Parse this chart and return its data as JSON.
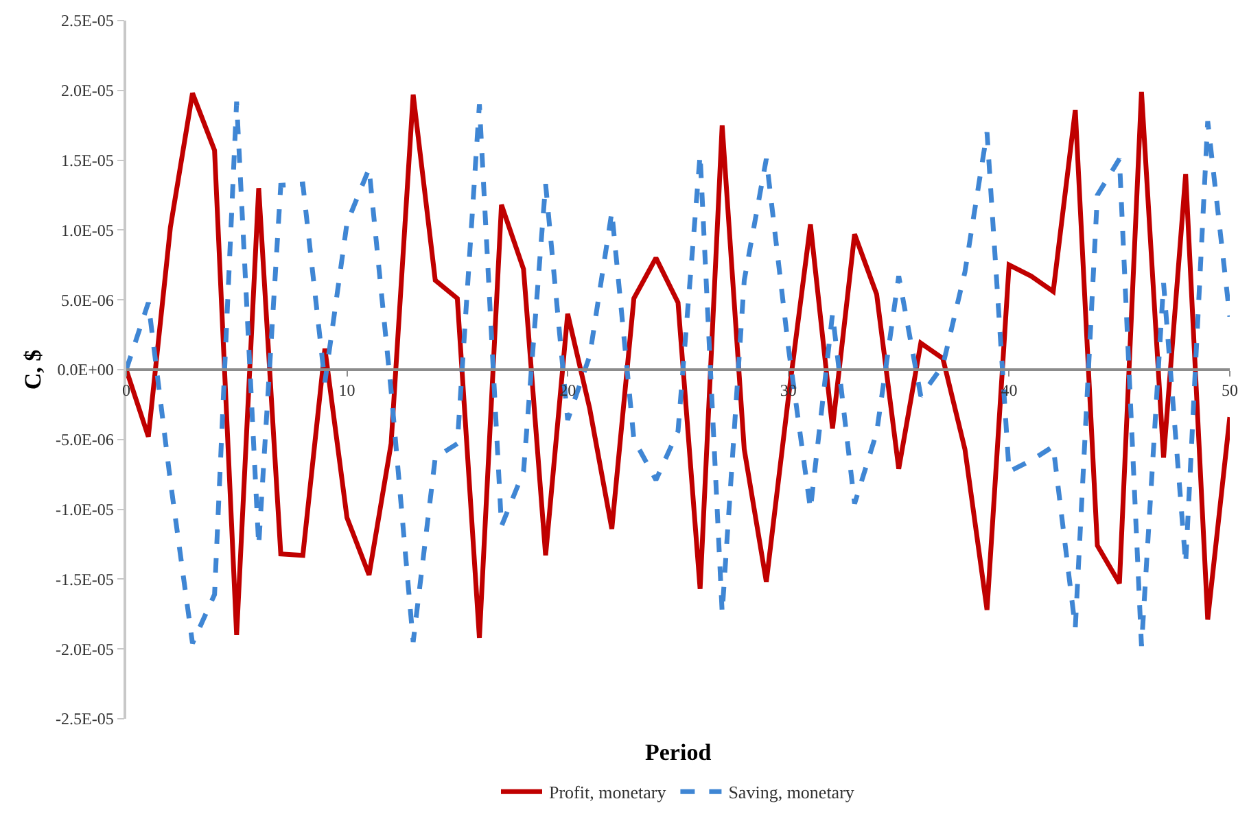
{
  "chart_data": {
    "type": "line",
    "xlabel": "Period",
    "ylabel": "C, $",
    "x": [
      0,
      1,
      2,
      3,
      4,
      5,
      6,
      7,
      8,
      9,
      10,
      11,
      12,
      13,
      14,
      15,
      16,
      17,
      18,
      19,
      20,
      21,
      22,
      23,
      24,
      25,
      26,
      27,
      28,
      29,
      30,
      31,
      32,
      33,
      34,
      35,
      36,
      37,
      38,
      39,
      40,
      41,
      42,
      43,
      44,
      45,
      46,
      47,
      48,
      49,
      50
    ],
    "series": [
      {
        "name": "Profit, monetary",
        "color": "#c00000",
        "line_style": "solid",
        "values": [
          0,
          -4.8e-06,
          1.02e-05,
          1.98e-05,
          1.57e-05,
          -1.9e-05,
          1.3e-05,
          -1.32e-05,
          -1.33e-05,
          1.5e-06,
          -1.06e-05,
          -1.47e-05,
          -5.3e-06,
          1.97e-05,
          6.4e-06,
          5.1e-06,
          -1.92e-05,
          1.18e-05,
          7.2e-06,
          -1.33e-05,
          4e-06,
          -2.8e-06,
          -1.14e-05,
          5.1e-06,
          8e-06,
          4.8e-06,
          -1.57e-05,
          1.75e-05,
          -5.7e-06,
          -1.52e-05,
          -2e-06,
          1.04e-05,
          -4.2e-06,
          9.7e-06,
          5.4e-06,
          -7.1e-06,
          1.9e-06,
          8e-07,
          -5.7e-06,
          -1.72e-05,
          7.5e-06,
          6.7e-06,
          5.6e-06,
          1.86e-05,
          -1.26e-05,
          -1.53e-05,
          1.99e-05,
          -6.3e-06,
          1.4e-05,
          -1.79e-05,
          -3.4e-06
        ]
      },
      {
        "name": "Saving, monetary",
        "color": "#3f86d4",
        "line_style": "dashed",
        "values": [
          0,
          4.8e-06,
          -8e-06,
          -1.96e-05,
          -1.61e-05,
          1.92e-05,
          -1.26e-05,
          1.32e-05,
          1.33e-05,
          -9e-07,
          1.05e-05,
          1.44e-05,
          -1.5e-06,
          -1.95e-05,
          -6.3e-06,
          -5.3e-06,
          1.9e-05,
          -1.12e-05,
          -7.3e-06,
          1.33e-05,
          -3.6e-06,
          1e-06,
          1.13e-05,
          -5e-06,
          -7.9e-06,
          -4.4e-06,
          1.54e-05,
          -1.74e-05,
          6.4e-06,
          1.51e-05,
          1.6e-06,
          -1e-05,
          4e-06,
          -9.6e-06,
          -4.5e-06,
          6.7e-06,
          -1.9e-06,
          3e-07,
          7e-06,
          1.7e-05,
          -7.3e-06,
          -6.5e-06,
          -5.5e-06,
          -1.85e-05,
          1.25e-05,
          1.51e-05,
          -1.98e-05,
          6.2e-06,
          -1.39e-05,
          1.78e-05,
          3.8e-06
        ]
      }
    ],
    "xlim": [
      0,
      50
    ],
    "xticks": [
      0,
      10,
      20,
      30,
      40,
      50
    ],
    "ylim": [
      -2.5e-05,
      2.5e-05
    ],
    "yticks": [
      {
        "value": -2.5e-05,
        "label": "-2.5E-05"
      },
      {
        "value": -2e-05,
        "label": "-2.0E-05"
      },
      {
        "value": -1.5e-05,
        "label": "-1.5E-05"
      },
      {
        "value": -1e-05,
        "label": "-1.0E-05"
      },
      {
        "value": -5e-06,
        "label": "-5.0E-06"
      },
      {
        "value": 0,
        "label": "0.0E+00"
      },
      {
        "value": 5e-06,
        "label": "5.0E-06"
      },
      {
        "value": 1e-05,
        "label": "1.0E-05"
      },
      {
        "value": 1.5e-05,
        "label": "1.5E-05"
      },
      {
        "value": 2e-05,
        "label": "2.0E-05"
      },
      {
        "value": 2.5e-05,
        "label": "2.5E-05"
      }
    ],
    "legend": "bottom",
    "marker": "none"
  }
}
